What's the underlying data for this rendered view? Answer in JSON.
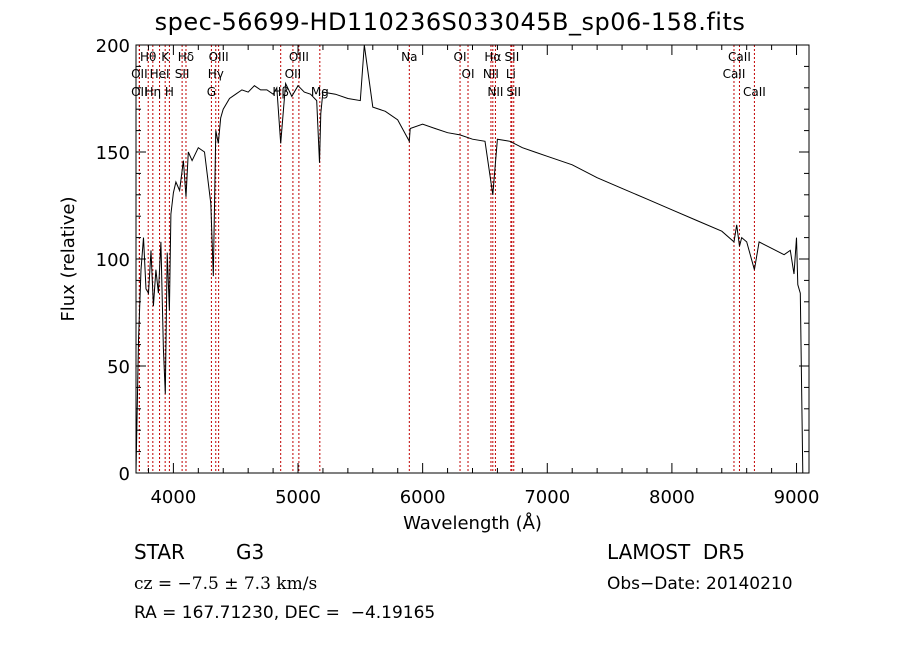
{
  "chart_data": {
    "type": "line",
    "title": "spec-56699-HD110236S033045B_sp06-158.fits",
    "xlabel": "Wavelength (Å)",
    "ylabel": "Flux (relative)",
    "xlim": [
      3700,
      9100
    ],
    "ylim": [
      0,
      200
    ],
    "xticks": [
      4000,
      5000,
      6000,
      7000,
      8000,
      9000
    ],
    "xtick_labels": [
      "4000",
      "5000",
      "6000",
      "7000",
      "8000",
      "9000"
    ],
    "yticks": [
      0,
      50,
      100,
      150,
      200
    ],
    "ytick_labels": [
      "0",
      "50",
      "100",
      "150",
      "200"
    ],
    "grid": false,
    "series": [
      {
        "x": [
          3700,
          3720,
          3740,
          3760,
          3780,
          3800,
          3820,
          3840,
          3860,
          3880,
          3900,
          3920,
          3935,
          3950,
          3968,
          3980,
          4000,
          4020,
          4050,
          4080,
          4101,
          4120,
          4150,
          4200,
          4250,
          4300,
          4320,
          4340,
          4360,
          4380,
          4400,
          4450,
          4500,
          4550,
          4600,
          4650,
          4700,
          4750,
          4800,
          4830,
          4861,
          4900,
          4950,
          5000,
          5050,
          5100,
          5150,
          5172,
          5183,
          5200,
          5300,
          5400,
          5500,
          5532,
          5600,
          5700,
          5800,
          5893,
          5900,
          6000,
          6100,
          6200,
          6300,
          6400,
          6500,
          6563,
          6600,
          6700,
          6800,
          6900,
          7000,
          7200,
          7400,
          7600,
          7800,
          8000,
          8200,
          8400,
          8498,
          8520,
          8542,
          8560,
          8600,
          8662,
          8700,
          8800,
          8900,
          8950,
          8980,
          9000,
          9010,
          9030,
          9050
        ],
        "y": [
          0,
          62,
          95,
          110,
          86,
          84,
          104,
          78,
          95,
          84,
          108,
          58,
          37,
          103,
          76,
          121,
          131,
          136,
          132,
          146,
          129,
          150,
          146,
          152,
          150,
          126,
          92,
          160,
          154,
          166,
          170,
          175,
          177,
          179,
          178,
          181,
          179,
          179,
          177,
          180,
          154,
          182,
          176,
          181,
          178,
          177,
          174,
          145,
          168,
          178,
          177,
          175,
          174,
          200,
          171,
          169,
          165,
          155,
          161,
          163,
          161,
          159,
          158,
          156,
          155,
          130,
          156,
          155,
          152,
          150,
          148,
          144,
          138,
          133,
          128,
          123,
          118,
          113,
          108,
          116,
          106,
          110,
          108,
          95,
          108,
          105,
          102,
          104,
          93,
          110,
          88,
          84,
          0
        ]
      }
    ],
    "line_markers": [
      {
        "label": "Hθ",
        "wl": 3798
      },
      {
        "label": "K",
        "wl": 3934
      },
      {
        "label": "Hδ",
        "wl": 4101
      },
      {
        "label": "OII",
        "wl": 3727
      },
      {
        "label": "HeI",
        "wl": 3889
      },
      {
        "label": "SII",
        "wl": 4070
      },
      {
        "label": "OII",
        "wl": 3727
      },
      {
        "label": "Hη",
        "wl": 3835
      },
      {
        "label": "H",
        "wl": 3968
      },
      {
        "label": "OIII",
        "wl": 4363
      },
      {
        "label": "Hγ",
        "wl": 4340
      },
      {
        "label": "G",
        "wl": 4305
      },
      {
        "label": "OIII",
        "wl": 5007
      },
      {
        "label": "OII",
        "wl": 4959
      },
      {
        "label": "Hβ",
        "wl": 4861
      },
      {
        "label": "Mg",
        "wl": 5175
      },
      {
        "label": "Na",
        "wl": 5893
      },
      {
        "label": "OI",
        "wl": 6300
      },
      {
        "label": "OI",
        "wl": 6364
      },
      {
        "label": "Hα",
        "wl": 6563
      },
      {
        "label": "SII",
        "wl": 6716
      },
      {
        "label": "NII",
        "wl": 6548
      },
      {
        "label": "Li",
        "wl": 6708
      },
      {
        "label": "NII",
        "wl": 6584
      },
      {
        "label": "SII",
        "wl": 6731
      },
      {
        "label": "CaII",
        "wl": 8542
      },
      {
        "label": "CaII",
        "wl": 8498
      },
      {
        "label": "CaII",
        "wl": 8662
      }
    ]
  },
  "info": {
    "object_class": "STAR",
    "subclass": "G3",
    "survey": "LAMOST  DR5",
    "cz": "cz = −7.5 ± 7.3 km/s",
    "obs_date": "Obs−Date: 20140210",
    "coords": "RA = 167.71230, DEC =  −4.19165"
  },
  "colors": {
    "spectrum": "#000000",
    "marker": "#c00000",
    "axis": "#000000"
  }
}
